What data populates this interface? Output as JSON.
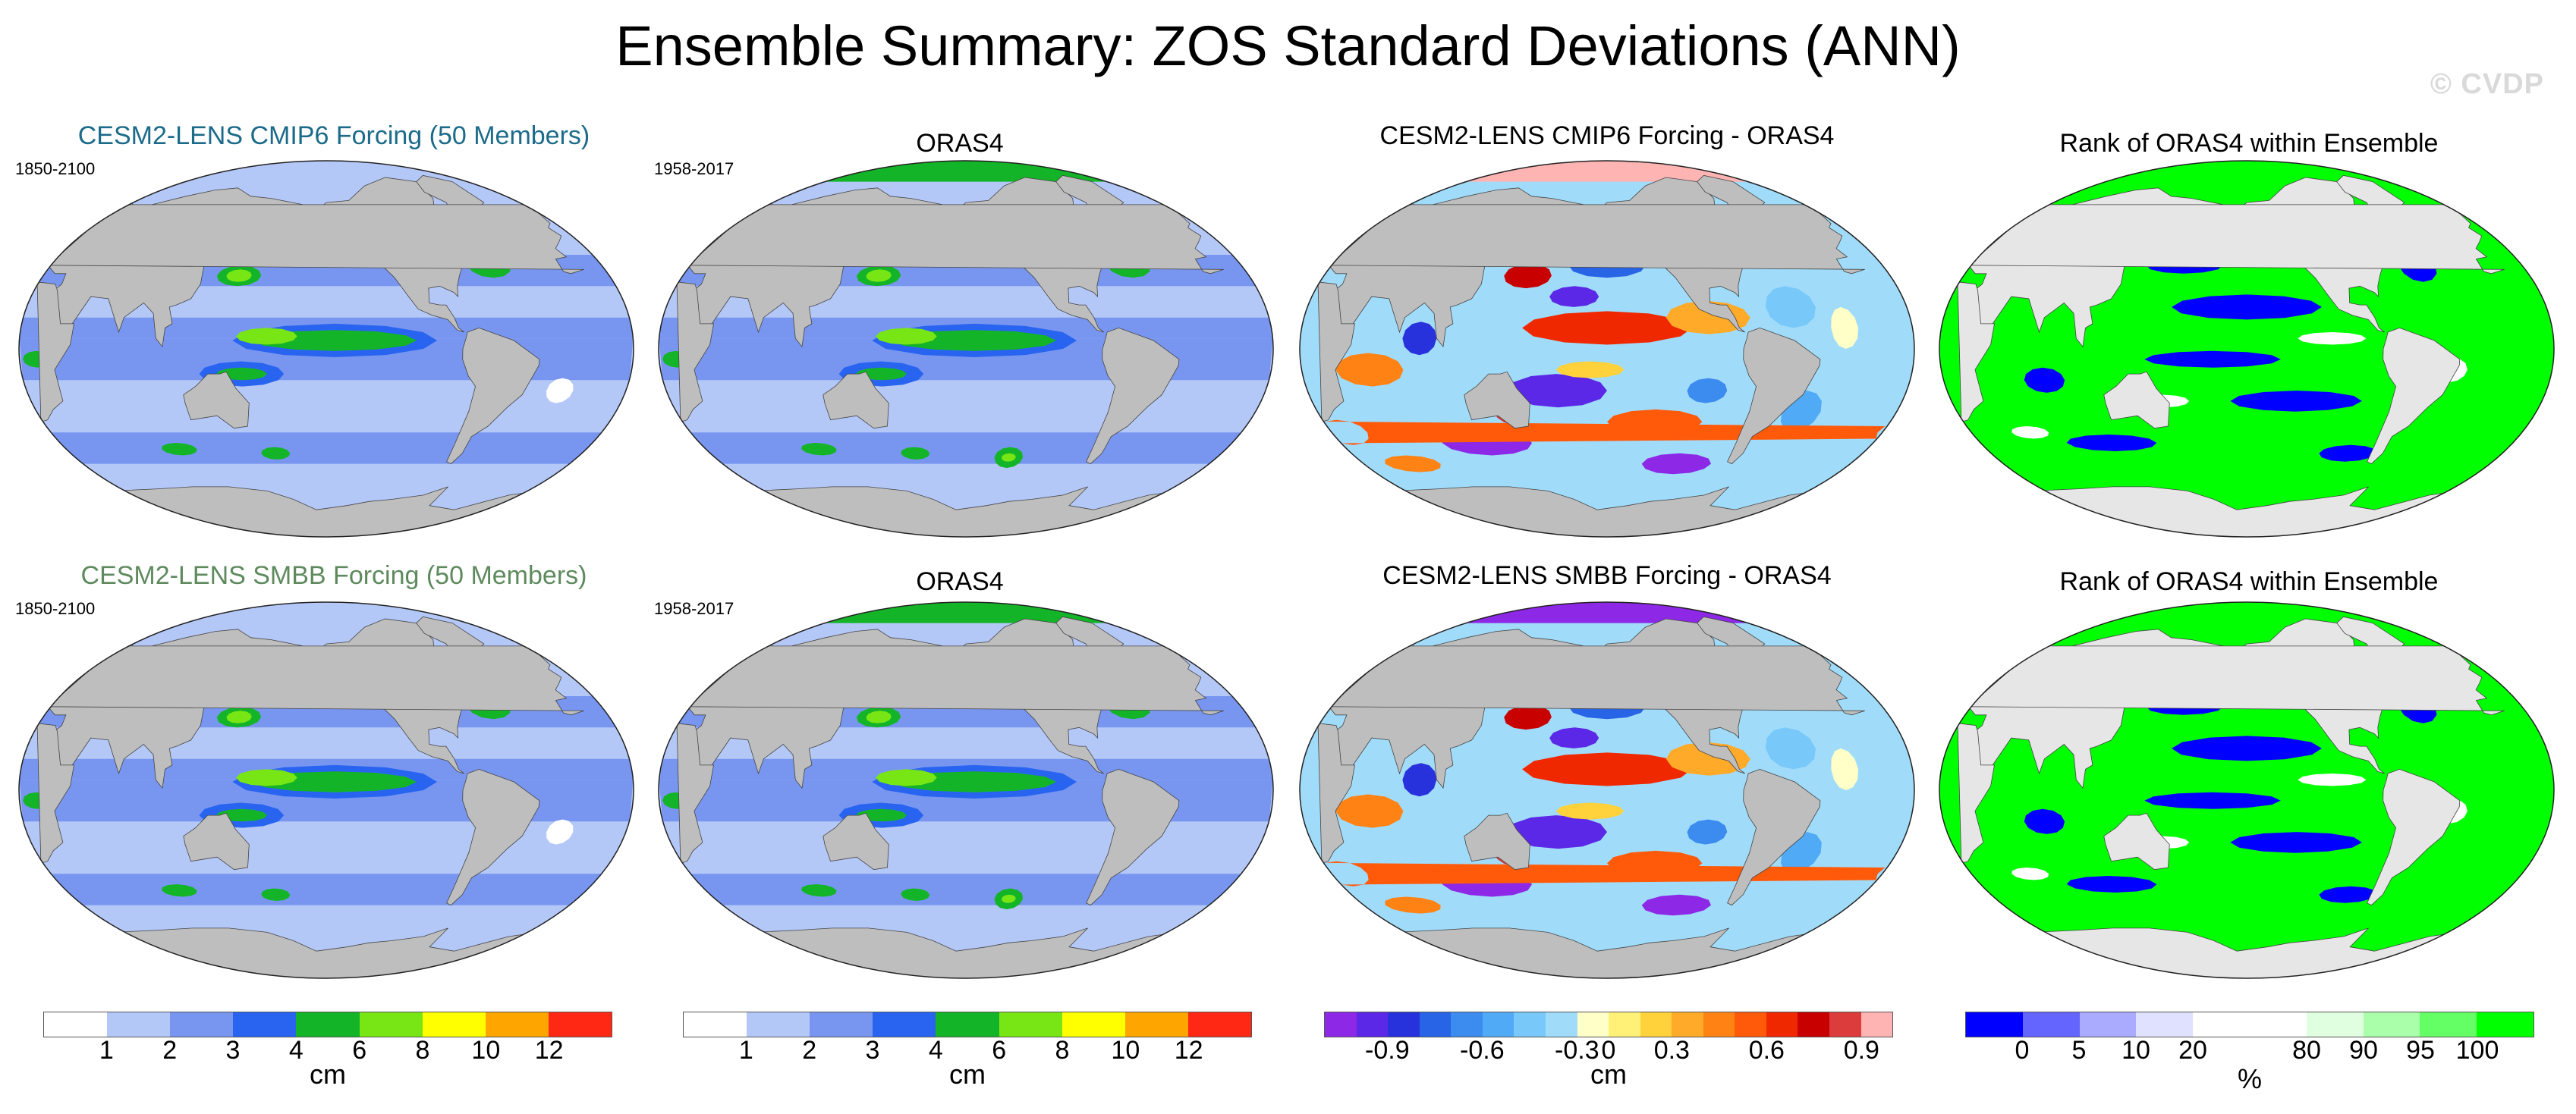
{
  "title": "Ensemble Summary: ZOS Standard Deviations (ANN)",
  "watermark": "© CVDP",
  "rows": [
    {
      "panels": [
        {
          "title": "CESM2-LENS CMIP6 Forcing (50 Members)",
          "title_color": "#1c6b8a",
          "period": "1850-2100",
          "kind": "std"
        },
        {
          "title": "ORAS4",
          "title_color": "#000000",
          "period": "1958-2017",
          "kind": "std_obs"
        },
        {
          "title": "CESM2-LENS CMIP6 Forcing - ORAS4",
          "title_color": "#000000",
          "period": "",
          "kind": "diff"
        },
        {
          "title": "Rank of ORAS4 within Ensemble",
          "title_color": "#000000",
          "period": "",
          "kind": "rank"
        }
      ]
    },
    {
      "panels": [
        {
          "title": "CESM2-LENS SMBB Forcing (50 Members)",
          "title_color": "#5e8a5e",
          "period": "1850-2100",
          "kind": "std"
        },
        {
          "title": "ORAS4",
          "title_color": "#000000",
          "period": "1958-2017",
          "kind": "std_obs"
        },
        {
          "title": "CESM2-LENS SMBB Forcing - ORAS4",
          "title_color": "#000000",
          "period": "",
          "kind": "diff"
        },
        {
          "title": "Rank of ORAS4 within Ensemble",
          "title_color": "#000000",
          "period": "",
          "kind": "rank"
        }
      ]
    }
  ],
  "colorbars": [
    {
      "name": "std-colorbar-1",
      "unit": "cm",
      "colors": [
        "#ffffff",
        "#b4c8f8",
        "#7896f0",
        "#2864f0",
        "#14b428",
        "#78e614",
        "#ffff00",
        "#ffa500",
        "#ff2814"
      ],
      "ticks": [
        "1",
        "2",
        "3",
        "4",
        "6",
        "8",
        "10",
        "12"
      ]
    },
    {
      "name": "std-colorbar-2",
      "unit": "cm",
      "colors": [
        "#ffffff",
        "#b4c8f8",
        "#7896f0",
        "#2864f0",
        "#14b428",
        "#78e614",
        "#ffff00",
        "#ffa500",
        "#ff2814"
      ],
      "ticks": [
        "1",
        "2",
        "3",
        "4",
        "6",
        "8",
        "10",
        "12"
      ]
    },
    {
      "name": "diff-colorbar",
      "unit": "cm",
      "colors": [
        "#8c28e6",
        "#5a28e6",
        "#2832dc",
        "#2864e6",
        "#3c8cf0",
        "#50aaf5",
        "#78c8fa",
        "#a0dcfa",
        "#ffffc8",
        "#fff078",
        "#ffd23c",
        "#ffaa28",
        "#ff8214",
        "#ff5a0a",
        "#f02800",
        "#c80000",
        "#dc3c3c",
        "#ffb4b4"
      ],
      "ticks": [
        "-0.9",
        "-0.6",
        "-0.3",
        "0",
        "0.3",
        "0.6",
        "0.9"
      ]
    },
    {
      "name": "rank-colorbar",
      "unit": "%",
      "colors": [
        "#0000ff",
        "#6464ff",
        "#aaaaff",
        "#e0e0ff",
        "#ffffff",
        "#ffffff",
        "#e0ffe0",
        "#aaffaa",
        "#64ff64",
        "#00ff00"
      ],
      "ticks": [
        "0",
        "5",
        "10",
        "20",
        "80",
        "90",
        "95",
        "100"
      ]
    }
  ],
  "colors": {
    "land": "#bebebe",
    "missing": "#e6e6e6",
    "outline": "#222222"
  }
}
